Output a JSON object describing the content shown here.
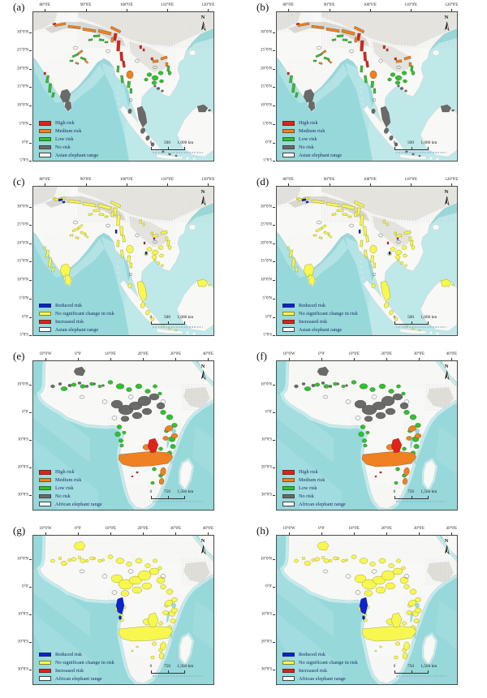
{
  "colors": {
    "high": "#de231b",
    "medium": "#ef8122",
    "low": "#2fc12f",
    "none": "#6a6a6a",
    "reduced": "#0b23d0",
    "nochange": "#f7f750",
    "increased": "#de231b",
    "range_fill": "#fdfdfb",
    "range_outline": "#4a463a",
    "ocean": "#97d8db",
    "land": "#f8f8f6"
  },
  "panels": [
    {
      "label": "(a)",
      "north": "N",
      "xticks": [
        "80°0'E",
        "90°0'E",
        "100°0'E",
        "110°0'E",
        "120°0'E"
      ],
      "yticks": [
        "30°0'N",
        "25°0'N",
        "20°0'N",
        "15°0'N",
        "10°0'N",
        "5°0'N",
        "0°0'",
        "5°0'S"
      ],
      "legend": [
        {
          "swatch": "high",
          "label": "High risk"
        },
        {
          "swatch": "medium",
          "label": "Medium risk"
        },
        {
          "swatch": "low",
          "label": "Low risk"
        },
        {
          "swatch": "none",
          "label": "No risk"
        },
        {
          "swatch": "range",
          "label": "Asian elephant range"
        }
      ],
      "scale": {
        "labels": [
          "0",
          "500",
          "1,000 km"
        ]
      }
    },
    {
      "label": "(b)",
      "north": "N",
      "xticks": [
        "80°0'E",
        "90°0'E",
        "100°0'E",
        "110°0'E",
        "120°0'E"
      ],
      "yticks": [
        "30°0'N",
        "25°0'N",
        "20°0'N",
        "15°0'N",
        "10°0'N",
        "5°0'N",
        "0°0'",
        "5°0'S"
      ],
      "legend": [
        {
          "swatch": "high",
          "label": "High risk"
        },
        {
          "swatch": "medium",
          "label": "Medium risk"
        },
        {
          "swatch": "low",
          "label": "Low risk"
        },
        {
          "swatch": "none",
          "label": "No risk"
        },
        {
          "swatch": "range",
          "label": "Asian elephant range"
        }
      ],
      "scale": {
        "labels": [
          "0",
          "500",
          "1,000 km"
        ]
      }
    },
    {
      "label": "(c)",
      "north": "N",
      "xticks": [
        "80°0'E",
        "90°0'E",
        "100°0'E",
        "110°0'E",
        "120°0'E"
      ],
      "yticks": [
        "30°0'N",
        "25°0'N",
        "20°0'N",
        "15°0'N",
        "10°0'N",
        "5°0'N",
        "0°0'",
        "5°0'S"
      ],
      "legend": [
        {
          "swatch": "reduced",
          "label": "Reduced risk"
        },
        {
          "swatch": "nochange",
          "label": "No significant change in risk"
        },
        {
          "swatch": "increased",
          "label": "Increased risk"
        },
        {
          "swatch": "range",
          "label": "Asian elephant range"
        }
      ],
      "scale": {
        "labels": [
          "0",
          "500",
          "1,000 km"
        ]
      }
    },
    {
      "label": "(d)",
      "north": "N",
      "xticks": [
        "80°0'E",
        "90°0'E",
        "100°0'E",
        "110°0'E",
        "120°0'E"
      ],
      "yticks": [
        "30°0'N",
        "25°0'N",
        "20°0'N",
        "15°0'N",
        "10°0'N",
        "5°0'N",
        "0°0'",
        "5°0'S"
      ],
      "legend": [
        {
          "swatch": "reduced",
          "label": "Reduced risk"
        },
        {
          "swatch": "nochange",
          "label": "No significant change in risk"
        },
        {
          "swatch": "increased",
          "label": "Increased risk"
        },
        {
          "swatch": "range",
          "label": "Asian elephant range"
        }
      ],
      "scale": {
        "labels": [
          "0",
          "500",
          "1,000 km"
        ]
      }
    },
    {
      "label": "(e)",
      "north": "N",
      "xticks": [
        "10°0'W",
        "0°0'",
        "10°0'E",
        "20°0'E",
        "30°0'E",
        "40°0'E"
      ],
      "yticks": [
        "10°0'N",
        "0°0'",
        "10°0'S",
        "20°0'S",
        "30°0'S"
      ],
      "legend": [
        {
          "swatch": "high",
          "label": "High risk"
        },
        {
          "swatch": "medium",
          "label": "Medium risk"
        },
        {
          "swatch": "low",
          "label": "Low risk"
        },
        {
          "swatch": "none",
          "label": "No risk"
        },
        {
          "swatch": "range",
          "label": "African elephant range"
        }
      ],
      "scale": {
        "labels": [
          "0",
          "750",
          "1,500 km"
        ]
      }
    },
    {
      "label": "(f)",
      "north": "N",
      "xticks": [
        "10°0'W",
        "0°0'",
        "10°0'E",
        "20°0'E",
        "30°0'E",
        "40°0'E"
      ],
      "yticks": [
        "10°0'N",
        "0°0'",
        "10°0'S",
        "20°0'S",
        "30°0'S"
      ],
      "legend": [
        {
          "swatch": "high",
          "label": "High risk"
        },
        {
          "swatch": "medium",
          "label": "Medium risk"
        },
        {
          "swatch": "low",
          "label": "Low risk"
        },
        {
          "swatch": "none",
          "label": "No risk"
        },
        {
          "swatch": "range",
          "label": "African elephant range"
        }
      ],
      "scale": {
        "labels": [
          "0",
          "750",
          "1,500 km"
        ]
      }
    },
    {
      "label": "(g)",
      "north": "N",
      "xticks": [
        "10°0'W",
        "0°0'",
        "10°0'E",
        "20°0'E",
        "30°0'E",
        "40°0'E"
      ],
      "yticks": [
        "10°0'N",
        "0°0'",
        "10°0'S",
        "20°0'S",
        "30°0'S"
      ],
      "legend": [
        {
          "swatch": "reduced",
          "label": "Reduced risk"
        },
        {
          "swatch": "nochange",
          "label": "No significant change in risk"
        },
        {
          "swatch": "increased",
          "label": "Increased risk"
        },
        {
          "swatch": "range",
          "label": "African elephant range"
        }
      ],
      "scale": {
        "labels": [
          "0",
          "750",
          "1,500 km"
        ]
      }
    },
    {
      "label": "(h)",
      "north": "N",
      "xticks": [
        "10°0'W",
        "0°0'",
        "10°0'E",
        "20°0'E",
        "30°0'E",
        "40°0'E"
      ],
      "yticks": [
        "10°0'N",
        "0°0'",
        "10°0'S",
        "20°0'S",
        "30°0'S"
      ],
      "legend": [
        {
          "swatch": "reduced",
          "label": "Reduced risk"
        },
        {
          "swatch": "nochange",
          "label": "No significant change in risk"
        },
        {
          "swatch": "increased",
          "label": "Increased risk"
        },
        {
          "swatch": "range",
          "label": "African elephant range"
        }
      ],
      "scale": {
        "labels": [
          "0",
          "750",
          "1,500 km"
        ]
      }
    }
  ]
}
